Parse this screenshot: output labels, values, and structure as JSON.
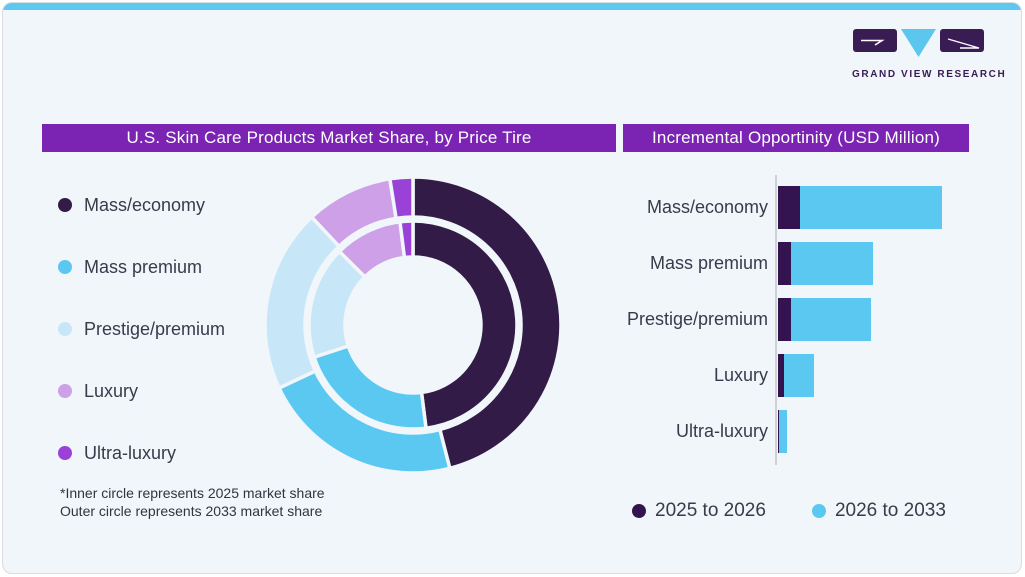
{
  "brand": {
    "name": "GRAND VIEW RESEARCH"
  },
  "header": {
    "left_title": "U.S. Skin Care Products Market Share, by Price Tire",
    "right_title": "Incremental Opportinity (USD Million)"
  },
  "colors": {
    "header_bg": "#7B24B4",
    "card_bg": "#F1F6FA",
    "top_strip": "#5FC8F0",
    "axis": "#CDD1D6",
    "text": "#3A3A4B",
    "logo_dark": "#3A1C55",
    "logo_blue": "#5BC6EE"
  },
  "footnote": {
    "line1": "*Inner circle represents 2025 market share",
    "line2": "Outer circle represents 2033 market share"
  },
  "chart_data": [
    {
      "type": "pie",
      "subtype": "nested-donut",
      "title": "U.S. Skin Care Products Market Share, by Price Tire",
      "categories": [
        "Mass/economy",
        "Mass premium",
        "Prestige/premium",
        "Luxury",
        "Ultra-luxury"
      ],
      "colors": [
        "#321B47",
        "#5BC8F2",
        "#C7E6F7",
        "#CDA0E8",
        "#9A41D8"
      ],
      "rings": [
        {
          "name": "2025 market share",
          "position": "inner",
          "values_pct": [
            48,
            22,
            17.5,
            10.5,
            2
          ]
        },
        {
          "name": "2033 market share",
          "position": "outer",
          "values_pct": [
            46,
            22,
            20,
            9.5,
            2.5
          ]
        }
      ],
      "legend_position": "left",
      "start_angle_deg": 0,
      "note": "*Inner circle represents 2025 market share; Outer circle represents 2033 market share"
    },
    {
      "type": "bar",
      "orientation": "horizontal",
      "stacked": true,
      "title": "Incremental Opportinity (USD Million)",
      "categories": [
        "Mass/economy",
        "Mass premium",
        "Prestige/premium",
        "Luxury",
        "Ultra-luxury"
      ],
      "series": [
        {
          "name": "2025 to 2026",
          "color": "#331450",
          "values_rel": [
            22,
            13,
            13,
            6,
            1
          ]
        },
        {
          "name": "2026 to 2033",
          "color": "#5BC8F2",
          "values_rel": [
            142,
            82,
            80,
            30,
            8
          ]
        }
      ],
      "value_axis_labels_shown": false,
      "legend_position": "bottom"
    }
  ]
}
